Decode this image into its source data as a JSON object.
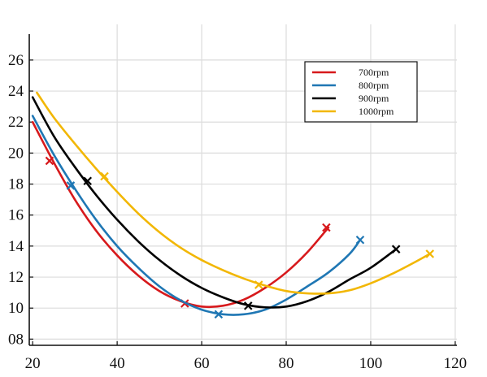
{
  "chart_data": {
    "type": "line",
    "title": "",
    "xlabel": "",
    "ylabel": "",
    "xlim": [
      20,
      120
    ],
    "ylim": [
      8,
      28
    ],
    "x_ticks": [
      20,
      40,
      60,
      80,
      100,
      120
    ],
    "y_ticks": [
      8,
      10,
      12,
      14,
      16,
      18,
      20,
      22,
      24,
      26
    ],
    "x_tick_labels": [
      "20",
      "40",
      "60",
      "80",
      "100",
      "120"
    ],
    "y_tick_labels": [
      "08",
      "10",
      "12",
      "14",
      "16",
      "18",
      "20",
      "22",
      "24",
      "26"
    ],
    "grid": true,
    "legend_position": "top-right",
    "series": [
      {
        "name": "700rpm",
        "color": "#d7191c",
        "curve": [
          [
            20,
            22.0
          ],
          [
            25,
            19.4
          ],
          [
            30,
            17.0
          ],
          [
            35,
            15.0
          ],
          [
            40,
            13.4
          ],
          [
            45,
            12.1
          ],
          [
            50,
            11.1
          ],
          [
            55,
            10.45
          ],
          [
            60,
            10.1
          ],
          [
            65,
            10.15
          ],
          [
            70,
            10.55
          ],
          [
            75,
            11.3
          ],
          [
            80,
            12.3
          ],
          [
            85,
            13.6
          ],
          [
            90,
            15.2
          ]
        ],
        "markers": [
          [
            24,
            19.5
          ],
          [
            56,
            10.3
          ],
          [
            89.5,
            15.2
          ]
        ]
      },
      {
        "name": "800rpm",
        "color": "#1f77b4",
        "curve": [
          [
            20,
            22.4
          ],
          [
            25,
            19.9
          ],
          [
            30,
            17.7
          ],
          [
            35,
            15.7
          ],
          [
            40,
            14.0
          ],
          [
            45,
            12.6
          ],
          [
            50,
            11.4
          ],
          [
            55,
            10.5
          ],
          [
            60,
            9.9
          ],
          [
            65,
            9.6
          ],
          [
            70,
            9.6
          ],
          [
            75,
            9.9
          ],
          [
            80,
            10.55
          ],
          [
            85,
            11.4
          ],
          [
            90,
            12.3
          ],
          [
            95,
            13.5
          ],
          [
            97.5,
            14.4
          ]
        ],
        "markers": [
          [
            29,
            17.9
          ],
          [
            64,
            9.6
          ],
          [
            97.5,
            14.4
          ]
        ]
      },
      {
        "name": "900rpm",
        "color": "#000000",
        "curve": [
          [
            20,
            23.6
          ],
          [
            25,
            21.1
          ],
          [
            30,
            19.1
          ],
          [
            35,
            17.3
          ],
          [
            40,
            15.7
          ],
          [
            45,
            14.3
          ],
          [
            50,
            13.1
          ],
          [
            55,
            12.1
          ],
          [
            60,
            11.3
          ],
          [
            65,
            10.7
          ],
          [
            70,
            10.25
          ],
          [
            75,
            10.05
          ],
          [
            80,
            10.1
          ],
          [
            85,
            10.45
          ],
          [
            90,
            11.05
          ],
          [
            95,
            11.85
          ],
          [
            100,
            12.6
          ],
          [
            106,
            13.8
          ]
        ],
        "markers": [
          [
            33,
            18.2
          ],
          [
            71,
            10.15
          ],
          [
            106,
            13.8
          ]
        ]
      },
      {
        "name": "1000rpm",
        "color": "#f2b705",
        "curve": [
          [
            21,
            23.9
          ],
          [
            25,
            22.3
          ],
          [
            30,
            20.6
          ],
          [
            35,
            19.0
          ],
          [
            40,
            17.5
          ],
          [
            45,
            16.1
          ],
          [
            50,
            14.9
          ],
          [
            55,
            13.9
          ],
          [
            60,
            13.1
          ],
          [
            65,
            12.45
          ],
          [
            70,
            11.9
          ],
          [
            75,
            11.45
          ],
          [
            80,
            11.1
          ],
          [
            85,
            10.95
          ],
          [
            90,
            10.95
          ],
          [
            95,
            11.15
          ],
          [
            100,
            11.6
          ],
          [
            105,
            12.2
          ],
          [
            110,
            12.9
          ],
          [
            114,
            13.5
          ]
        ],
        "markers": [
          [
            37,
            18.5
          ],
          [
            73.5,
            11.5
          ],
          [
            114,
            13.5
          ]
        ]
      }
    ]
  }
}
